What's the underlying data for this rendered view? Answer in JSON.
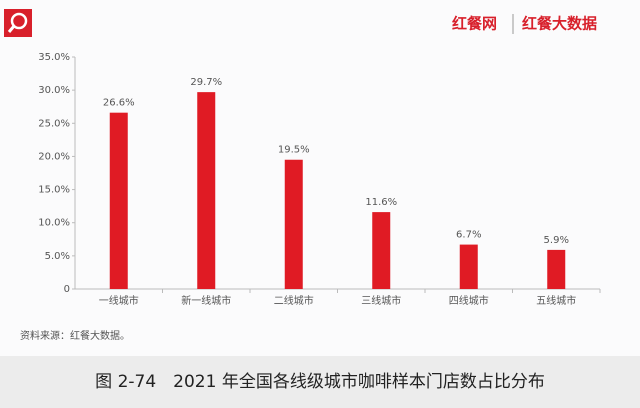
{
  "chart_data": {
    "type": "bar",
    "brand": [
      "红餐网",
      "红餐大数据"
    ],
    "categories": [
      "一线城市",
      "新一线城市",
      "二线城市",
      "三线城市",
      "四线城市",
      "五线城市"
    ],
    "values": [
      26.6,
      29.7,
      19.5,
      11.6,
      6.7,
      5.9
    ],
    "value_labels": [
      "26.6%",
      "29.7%",
      "19.5%",
      "11.6%",
      "6.7%",
      "5.9%"
    ],
    "color": "#e01b24",
    "ylim": [
      0,
      35
    ],
    "yticks": [
      0,
      {
        "value": 5,
        "label": "5.0%"
      },
      {
        "value": 10,
        "label": "10.0%"
      },
      {
        "value": 15,
        "label": "15.0%"
      },
      {
        "value": 20,
        "label": "20.0%"
      },
      {
        "value": 25,
        "label": "25.0%"
      },
      {
        "value": 30,
        "label": "30.0%"
      },
      {
        "value": 35,
        "label": "35.0%"
      }
    ],
    "source": "资料来源：红餐大数据。",
    "caption": "图 2-74　2021 年全国各线级城市咖啡样本门店数占比分布"
  }
}
